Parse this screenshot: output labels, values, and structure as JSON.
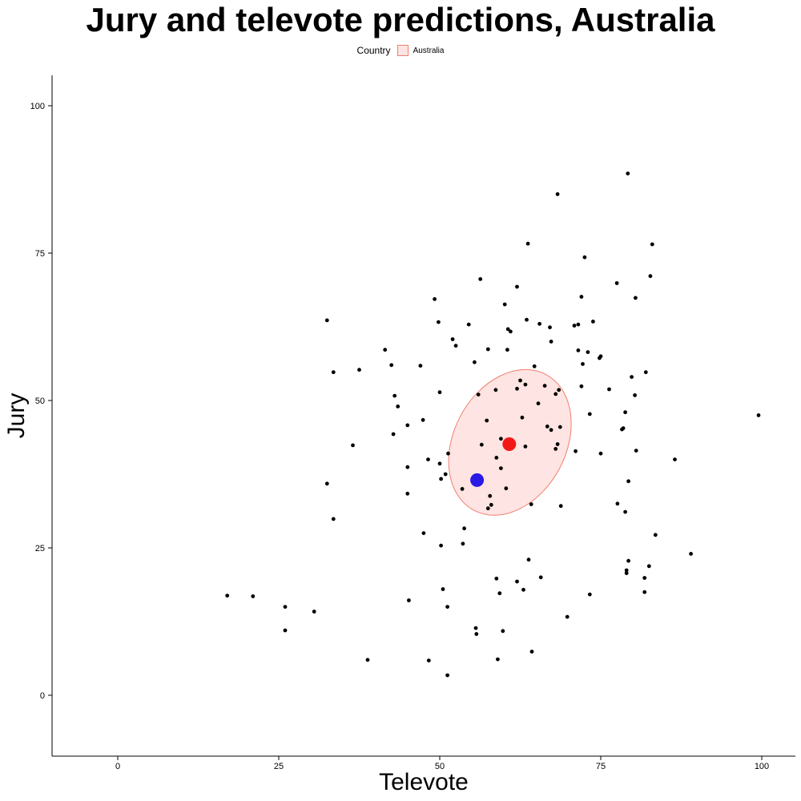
{
  "chart_data": {
    "type": "scatter",
    "title": "Jury and televote predictions, Australia",
    "xlabel": "Televote",
    "ylabel": "Jury",
    "xlim": [
      -10,
      105
    ],
    "ylim": [
      -10,
      105
    ],
    "xticks": [
      0,
      25,
      50,
      75,
      100
    ],
    "yticks": [
      0,
      25,
      50,
      75,
      100
    ],
    "grid": false,
    "legend": {
      "position": "top",
      "title": "Country",
      "entries": [
        {
          "label": "Australia",
          "fill": "#f8766d"
        }
      ]
    },
    "ellipse": {
      "country": "Australia",
      "center": [
        60.9,
        42.9
      ],
      "color": "#f8766d"
    },
    "highlight_points": [
      {
        "x": 60.8,
        "y": 42.6,
        "color": "#f21818"
      },
      {
        "x": 55.8,
        "y": 36.5,
        "color": "#2b19e6"
      }
    ],
    "points": [
      [
        17.0,
        16.9
      ],
      [
        21.0,
        16.8
      ],
      [
        26.0,
        15.0
      ],
      [
        26.0,
        11.0
      ],
      [
        30.5,
        14.2
      ],
      [
        32.5,
        63.6
      ],
      [
        32.5,
        35.9
      ],
      [
        33.5,
        54.8
      ],
      [
        33.5,
        29.9
      ],
      [
        36.5,
        42.4
      ],
      [
        37.5,
        55.2
      ],
      [
        38.8,
        6.0
      ],
      [
        41.5,
        58.6
      ],
      [
        42.5,
        56.0
      ],
      [
        42.8,
        44.3
      ],
      [
        43.0,
        50.8
      ],
      [
        43.5,
        49.0
      ],
      [
        45.0,
        45.8
      ],
      [
        45.0,
        38.7
      ],
      [
        45.0,
        34.2
      ],
      [
        45.2,
        16.1
      ],
      [
        47.0,
        55.9
      ],
      [
        47.4,
        46.7
      ],
      [
        47.5,
        27.5
      ],
      [
        48.2,
        40.0
      ],
      [
        48.3,
        5.9
      ],
      [
        49.2,
        67.2
      ],
      [
        49.8,
        63.3
      ],
      [
        50.0,
        51.4
      ],
      [
        50.0,
        39.3
      ],
      [
        50.2,
        36.7
      ],
      [
        50.2,
        25.4
      ],
      [
        50.5,
        18.0
      ],
      [
        50.9,
        37.5
      ],
      [
        51.2,
        15.0
      ],
      [
        51.2,
        3.4
      ],
      [
        51.3,
        41.0
      ],
      [
        52.0,
        60.4
      ],
      [
        52.5,
        59.3
      ],
      [
        53.5,
        35.0
      ],
      [
        53.6,
        25.7
      ],
      [
        53.8,
        28.3
      ],
      [
        54.5,
        62.9
      ],
      [
        55.4,
        56.5
      ],
      [
        55.6,
        11.4
      ],
      [
        55.7,
        10.4
      ],
      [
        56.0,
        51.0
      ],
      [
        56.3,
        70.6
      ],
      [
        56.5,
        42.5
      ],
      [
        57.5,
        58.7
      ],
      [
        57.5,
        31.7
      ],
      [
        57.3,
        46.6
      ],
      [
        57.8,
        33.8
      ],
      [
        58.0,
        32.3
      ],
      [
        58.7,
        51.8
      ],
      [
        58.8,
        40.3
      ],
      [
        58.8,
        19.8
      ],
      [
        59.0,
        6.1
      ],
      [
        59.3,
        17.3
      ],
      [
        59.5,
        43.5
      ],
      [
        59.5,
        38.5
      ],
      [
        59.8,
        10.9
      ],
      [
        60.1,
        66.3
      ],
      [
        60.5,
        58.6
      ],
      [
        60.6,
        62.1
      ],
      [
        61.0,
        61.7
      ],
      [
        60.3,
        35.1
      ],
      [
        62.0,
        69.3
      ],
      [
        62.0,
        52.0
      ],
      [
        62.0,
        19.3
      ],
      [
        62.5,
        53.4
      ],
      [
        62.8,
        47.1
      ],
      [
        63.0,
        17.9
      ],
      [
        63.3,
        52.7
      ],
      [
        63.3,
        42.2
      ],
      [
        63.5,
        63.7
      ],
      [
        63.7,
        76.6
      ],
      [
        63.8,
        23.0
      ],
      [
        64.2,
        32.4
      ],
      [
        64.3,
        7.4
      ],
      [
        64.7,
        55.8
      ],
      [
        65.3,
        49.5
      ],
      [
        65.5,
        63.0
      ],
      [
        65.7,
        20.0
      ],
      [
        66.3,
        52.5
      ],
      [
        66.7,
        45.6
      ],
      [
        67.1,
        62.4
      ],
      [
        67.3,
        45.0
      ],
      [
        67.3,
        60.0
      ],
      [
        68.0,
        51.1
      ],
      [
        68.0,
        41.8
      ],
      [
        68.3,
        85.0
      ],
      [
        68.3,
        42.6
      ],
      [
        68.5,
        51.8
      ],
      [
        68.7,
        45.5
      ],
      [
        68.8,
        32.1
      ],
      [
        69.8,
        13.3
      ],
      [
        70.9,
        62.7
      ],
      [
        71.1,
        41.4
      ],
      [
        71.5,
        58.5
      ],
      [
        71.5,
        62.9
      ],
      [
        72.0,
        52.4
      ],
      [
        72.0,
        67.6
      ],
      [
        72.2,
        56.2
      ],
      [
        72.5,
        74.3
      ],
      [
        73.0,
        58.2
      ],
      [
        73.3,
        47.7
      ],
      [
        73.3,
        17.1
      ],
      [
        73.8,
        63.4
      ],
      [
        74.8,
        57.2
      ],
      [
        75.0,
        57.5
      ],
      [
        75.0,
        41.0
      ],
      [
        76.3,
        51.9
      ],
      [
        77.5,
        69.9
      ],
      [
        77.6,
        32.5
      ],
      [
        78.3,
        45.1
      ],
      [
        78.5,
        45.3
      ],
      [
        78.8,
        48.0
      ],
      [
        78.8,
        31.1
      ],
      [
        79.0,
        21.2
      ],
      [
        79.0,
        20.7
      ],
      [
        79.2,
        88.5
      ],
      [
        79.3,
        36.3
      ],
      [
        79.3,
        22.8
      ],
      [
        79.8,
        54.0
      ],
      [
        80.3,
        50.9
      ],
      [
        80.4,
        67.4
      ],
      [
        80.5,
        41.5
      ],
      [
        81.8,
        17.5
      ],
      [
        81.8,
        19.9
      ],
      [
        82.0,
        54.8
      ],
      [
        82.5,
        21.9
      ],
      [
        82.7,
        71.1
      ],
      [
        83.0,
        76.5
      ],
      [
        83.5,
        27.2
      ],
      [
        86.5,
        40.0
      ],
      [
        89.0,
        24.0
      ],
      [
        99.5,
        47.5
      ]
    ]
  }
}
